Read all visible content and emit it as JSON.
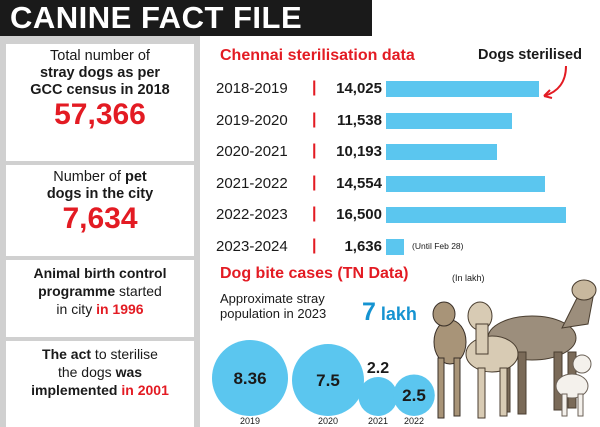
{
  "banner": {
    "title": "CANINE FACT FILE"
  },
  "facts": {
    "census": {
      "line1": "Total number of",
      "line2": "stray dogs as per",
      "line3": "GCC census in 2018",
      "value": "57,366"
    },
    "pets": {
      "line1": "Number of ",
      "line1b": "pet",
      "line2": "dogs in the city",
      "value": "7,634"
    },
    "abc": {
      "line1": "Animal birth control",
      "line2a": "programme",
      "line2b": " started",
      "line3a": "in city ",
      "line3b": "in 1996"
    },
    "act": {
      "line1a": "The act",
      "line1b": " to sterilise",
      "line2": "the dogs ",
      "line2b": "was",
      "line3a": "implemented",
      "line3b": " in 2001"
    }
  },
  "sterilisation": {
    "title": "Chennai sterilisation data",
    "legend": "Dogs sterilised",
    "separator": "|",
    "note": "(Until Feb 28)"
  },
  "bites": {
    "title": "Dog bite cases (TN Data)",
    "unit_note": "(In lakh)",
    "stray_label": "Approximate stray population in 2023",
    "stray_value": "7",
    "stray_unit": " lakh"
  },
  "colors": {
    "accent_red": "#e31b23",
    "bar_blue": "#5bc6ef",
    "bubble_blue": "#5bc6ef",
    "stray_blue": "#1593d1"
  },
  "chart_data": [
    {
      "type": "bar",
      "title": "Chennai sterilisation data",
      "categories": [
        "2018-2019",
        "2019-2020",
        "2020-2021",
        "2021-2022",
        "2022-2023",
        "2023-2024"
      ],
      "series": [
        {
          "name": "Dogs sterilised",
          "values": [
            14025,
            11538,
            10193,
            14554,
            16500,
            1636
          ],
          "labels": [
            "14,025",
            "11,538",
            "10,193",
            "14,554",
            "16,500",
            "1,636"
          ]
        }
      ]
    },
    {
      "type": "scatter",
      "title": "Dog bite cases (TN Data)",
      "unit": "(In lakh)",
      "categories": [
        "2019",
        "2020",
        "2021",
        "2022"
      ],
      "values": [
        8.36,
        7.5,
        2.2,
        2.5
      ]
    }
  ]
}
